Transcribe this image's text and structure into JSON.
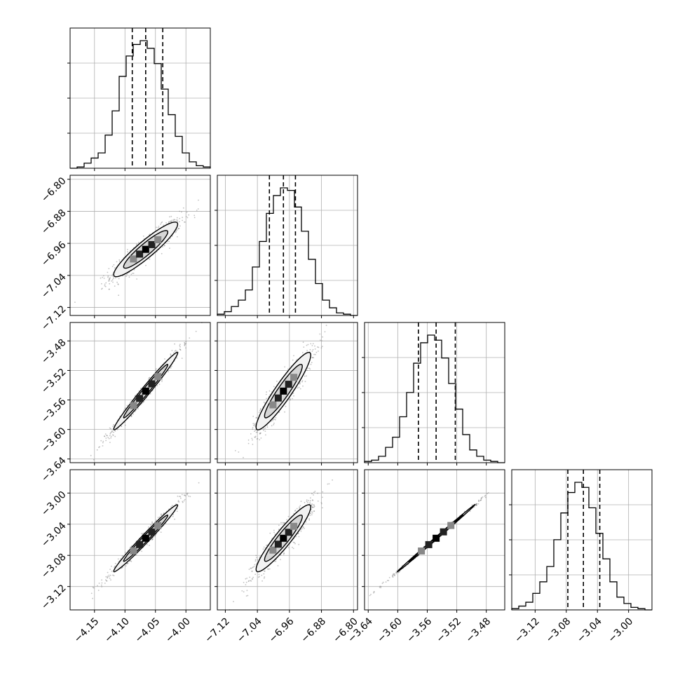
{
  "chart_data": {
    "type": "corner",
    "params": [
      {
        "range": [
          -4.19,
          -3.96
        ],
        "ticks": [
          -4.15,
          -4.1,
          -4.05,
          -4.0
        ],
        "tick_labels": [
          "−4.15",
          "−4.10",
          "−4.05",
          "−4.00"
        ],
        "quantiles": [
          -4.088,
          -4.066,
          -4.038
        ]
      },
      {
        "range": [
          -7.14,
          -6.79
        ],
        "ticks": [
          -7.12,
          -7.04,
          -6.96,
          -6.88,
          -6.8
        ],
        "tick_labels": [
          "−7.12",
          "−7.04",
          "−6.96",
          "−6.88",
          "−6.80"
        ],
        "quantiles": [
          -7.01,
          -6.975,
          -6.945
        ]
      },
      {
        "range": [
          -3.645,
          -3.455
        ],
        "ticks": [
          -3.64,
          -3.6,
          -3.56,
          -3.52,
          -3.48
        ],
        "tick_labels": [
          "−3.64",
          "−3.60",
          "−3.56",
          "−3.52",
          "−3.48"
        ],
        "quantiles": [
          -3.572,
          -3.548,
          -3.522
        ]
      },
      {
        "range": [
          -3.15,
          -2.97
        ],
        "ticks": [
          -3.12,
          -3.08,
          -3.04,
          -3.0
        ],
        "tick_labels": [
          "−3.12",
          "−3.08",
          "−3.04",
          "−3.00"
        ],
        "quantiles": [
          -3.078,
          -3.058,
          -3.037
        ]
      }
    ],
    "histograms": [
      [
        0.0,
        0.01,
        0.04,
        0.08,
        0.12,
        0.26,
        0.45,
        0.72,
        0.88,
        0.97,
        1.0,
        0.94,
        0.82,
        0.62,
        0.42,
        0.25,
        0.12,
        0.05,
        0.02,
        0.01
      ],
      [
        0.01,
        0.03,
        0.07,
        0.12,
        0.2,
        0.38,
        0.58,
        0.8,
        0.94,
        1.0,
        0.98,
        0.85,
        0.66,
        0.44,
        0.25,
        0.12,
        0.06,
        0.02,
        0.01,
        0.0
      ],
      [
        0.01,
        0.02,
        0.05,
        0.12,
        0.2,
        0.36,
        0.55,
        0.78,
        0.94,
        1.0,
        0.96,
        0.82,
        0.62,
        0.42,
        0.22,
        0.1,
        0.05,
        0.02,
        0.01,
        0.0
      ],
      [
        0.01,
        0.03,
        0.06,
        0.13,
        0.22,
        0.34,
        0.55,
        0.76,
        0.92,
        1.0,
        0.96,
        0.8,
        0.6,
        0.4,
        0.22,
        0.1,
        0.05,
        0.02,
        0.01,
        0.0
      ]
    ],
    "correlations": {
      "1-0": 0.92,
      "2-0": 0.985,
      "2-1": 0.93,
      "3-0": 0.985,
      "3-1": 0.93,
      "3-2": 0.999
    },
    "grid": true,
    "xlabel": "",
    "ylabel": ""
  }
}
